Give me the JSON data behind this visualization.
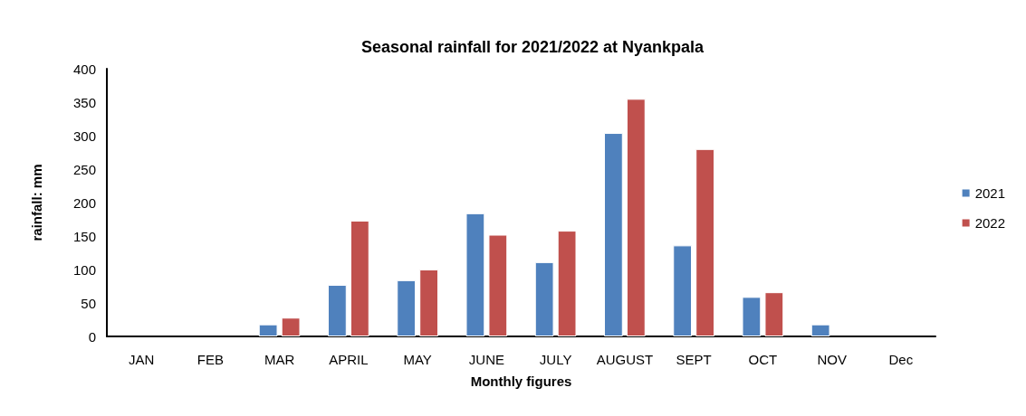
{
  "chart_data": {
    "type": "bar",
    "title": "Seasonal rainfall for 2021/2022 at Nyankpala",
    "xlabel": "Monthly figures",
    "ylabel": "rainfall: mm",
    "categories": [
      "JAN",
      "FEB",
      "MAR",
      "APRIL",
      "MAY",
      "JUNE",
      "JULY",
      "AUGUST",
      "SEPT",
      "OCT",
      "NOV",
      "Dec"
    ],
    "series": [
      {
        "name": "2021",
        "color": "#4f81bd",
        "values": [
          null,
          null,
          18,
          77,
          84,
          184,
          111,
          304,
          136,
          59,
          18,
          null
        ]
      },
      {
        "name": "2022",
        "color": "#c0504d",
        "values": [
          null,
          null,
          28,
          173,
          100,
          152,
          158,
          355,
          280,
          66,
          null,
          null
        ]
      }
    ],
    "ylim": [
      0,
      400
    ],
    "yticks": [
      0,
      50,
      100,
      150,
      200,
      250,
      300,
      350,
      400
    ],
    "grid": false,
    "legend": "right"
  }
}
